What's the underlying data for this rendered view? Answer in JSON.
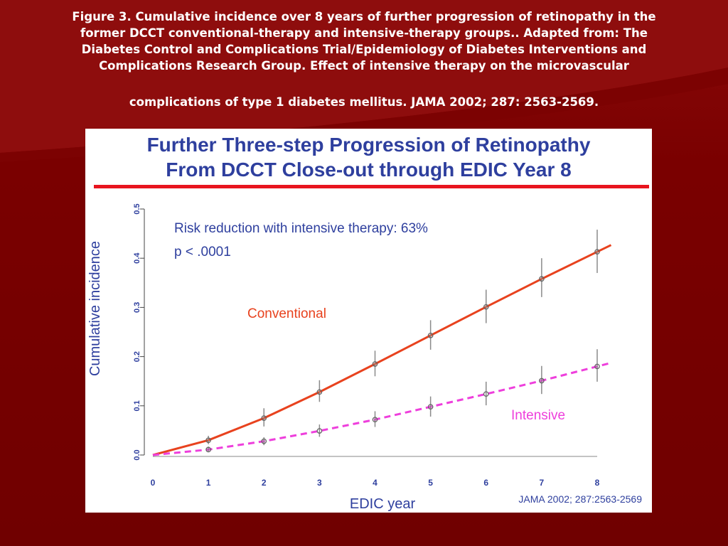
{
  "caption": {
    "lines": [
      "Figure 3. Cumulative incidence over 8 years of further progression of retinopathy in the",
      "former DCCT conventional-therapy and intensive-therapy groups.. Adapted from: The",
      "Diabetes Control and Complications Trial/Epidemiology of Diabetes Interventions and",
      "Complications Research Group. Effect of intensive therapy on the microvascular",
      "complications of type 1 diabetes mellitus. JAMA 2002; 287: 2563-2569."
    ]
  },
  "chart_data": {
    "type": "line",
    "title": "Further Three-step Progression of Retinopathy",
    "subtitle": "From DCCT Close-out through EDIC Year 8",
    "xlabel": "EDIC year",
    "ylabel": "Cumulative incidence",
    "xlim": [
      0,
      8
    ],
    "ylim": [
      0,
      0.5
    ],
    "xticks": [
      "0",
      "1",
      "2",
      "3",
      "4",
      "5",
      "6",
      "7",
      "8"
    ],
    "yticks": [
      "0.0",
      "0.1",
      "0.2",
      "0.3",
      "0.4",
      "0.5"
    ],
    "grid": false,
    "series": [
      {
        "name": "Conventional",
        "color": "#e8421e",
        "line_style": "solid",
        "x": [
          1,
          2,
          3,
          4,
          5,
          6,
          7,
          8
        ],
        "y": [
          0.03,
          0.075,
          0.128,
          0.185,
          0.243,
          0.301,
          0.358,
          0.413
        ],
        "err_low": [
          0.022,
          0.058,
          0.108,
          0.16,
          0.214,
          0.268,
          0.321,
          0.37
        ],
        "err_high": [
          0.039,
          0.095,
          0.152,
          0.212,
          0.274,
          0.336,
          0.4,
          0.458
        ]
      },
      {
        "name": "Intensive",
        "color": "#ee3fdc",
        "line_style": "dashed",
        "x": [
          1,
          2,
          3,
          4,
          5,
          6,
          7,
          8
        ],
        "y": [
          0.011,
          0.028,
          0.049,
          0.072,
          0.098,
          0.124,
          0.151,
          0.18
        ],
        "err_low": [
          0.006,
          0.02,
          0.037,
          0.057,
          0.078,
          0.101,
          0.124,
          0.149
        ],
        "err_high": [
          0.017,
          0.036,
          0.062,
          0.089,
          0.119,
          0.149,
          0.181,
          0.215
        ]
      }
    ],
    "annotations": {
      "risk_reduction": "Risk reduction with intensive therapy: 63%",
      "p_value": "p < .0001",
      "source": "JAMA 2002; 287:2563-2569"
    },
    "colors": {
      "axis_text": "#2e3f9e",
      "rule": "#e8141e",
      "background": "#7a0000"
    }
  }
}
